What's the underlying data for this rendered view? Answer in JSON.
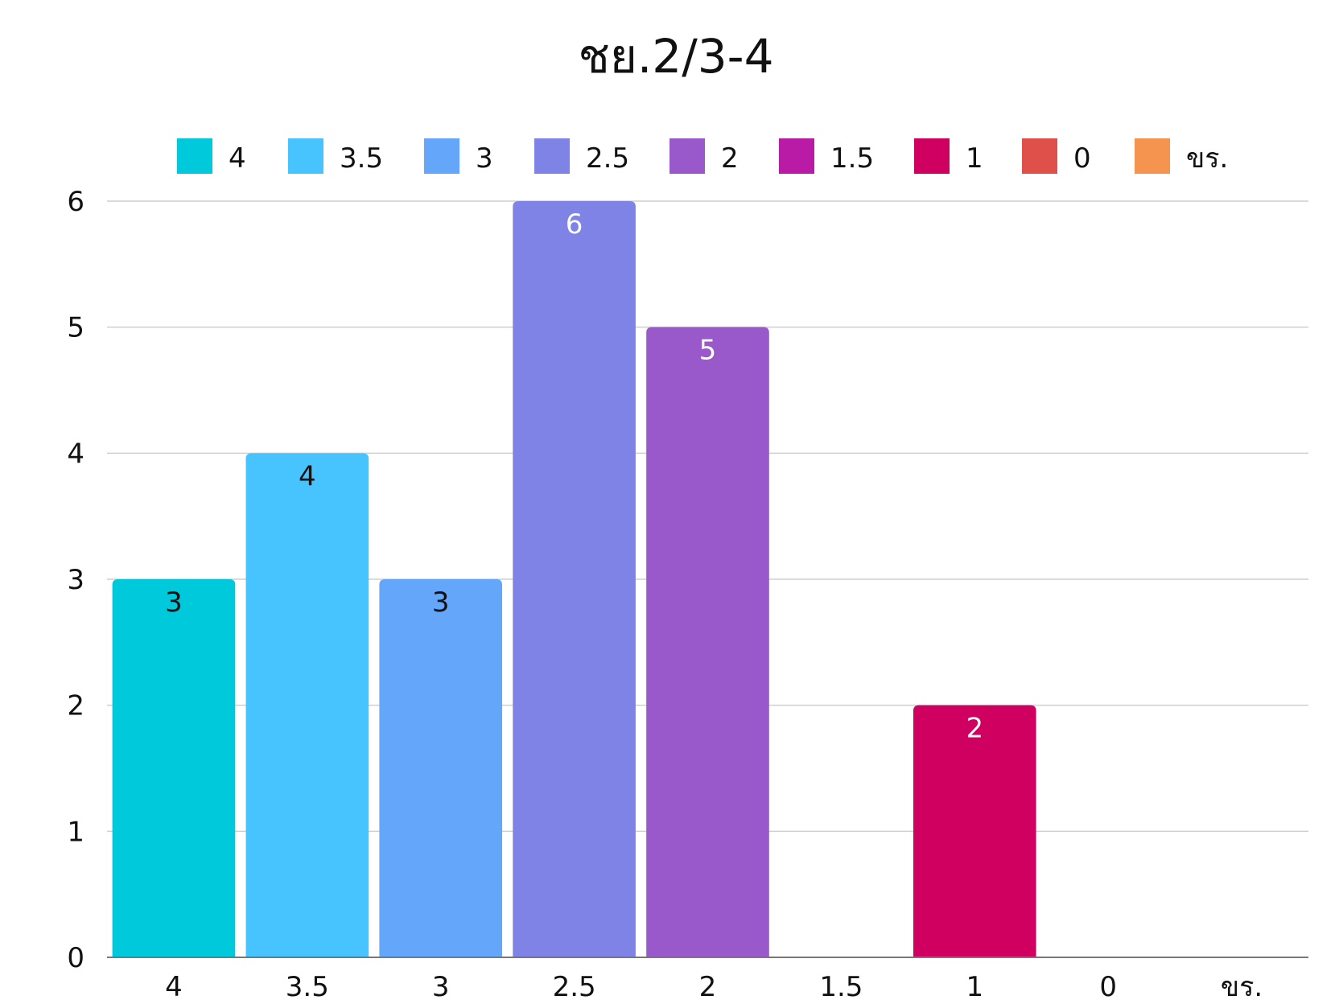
{
  "chart_data": {
    "type": "bar",
    "title": "ชย.2/3-4",
    "xlabel": "",
    "ylabel": "",
    "categories": [
      "4",
      "3.5",
      "3",
      "2.5",
      "2",
      "1.5",
      "1",
      "0",
      "ขร."
    ],
    "values": [
      3,
      4,
      3,
      6,
      5,
      0,
      2,
      0,
      0
    ],
    "ylim": [
      0,
      6
    ],
    "yticks": [
      "0",
      "1",
      "2",
      "3",
      "4",
      "5",
      "6"
    ],
    "colors": [
      "#00c9dc",
      "#47c4fd",
      "#64a6fa",
      "#7f83e6",
      "#9a59cb",
      "#b91aa6",
      "#d00060",
      "#e0504a",
      "#f5944f"
    ],
    "label_colors": [
      "#111111",
      "#111111",
      "#111111",
      "#ffffff",
      "#ffffff",
      "#ffffff",
      "#ffffff",
      "#ffffff",
      "#ffffff"
    ],
    "legend": {
      "position": "top",
      "entries": [
        "4",
        "3.5",
        "3",
        "2.5",
        "2",
        "1.5",
        "1",
        "0",
        "ขร."
      ]
    },
    "grid": true
  }
}
